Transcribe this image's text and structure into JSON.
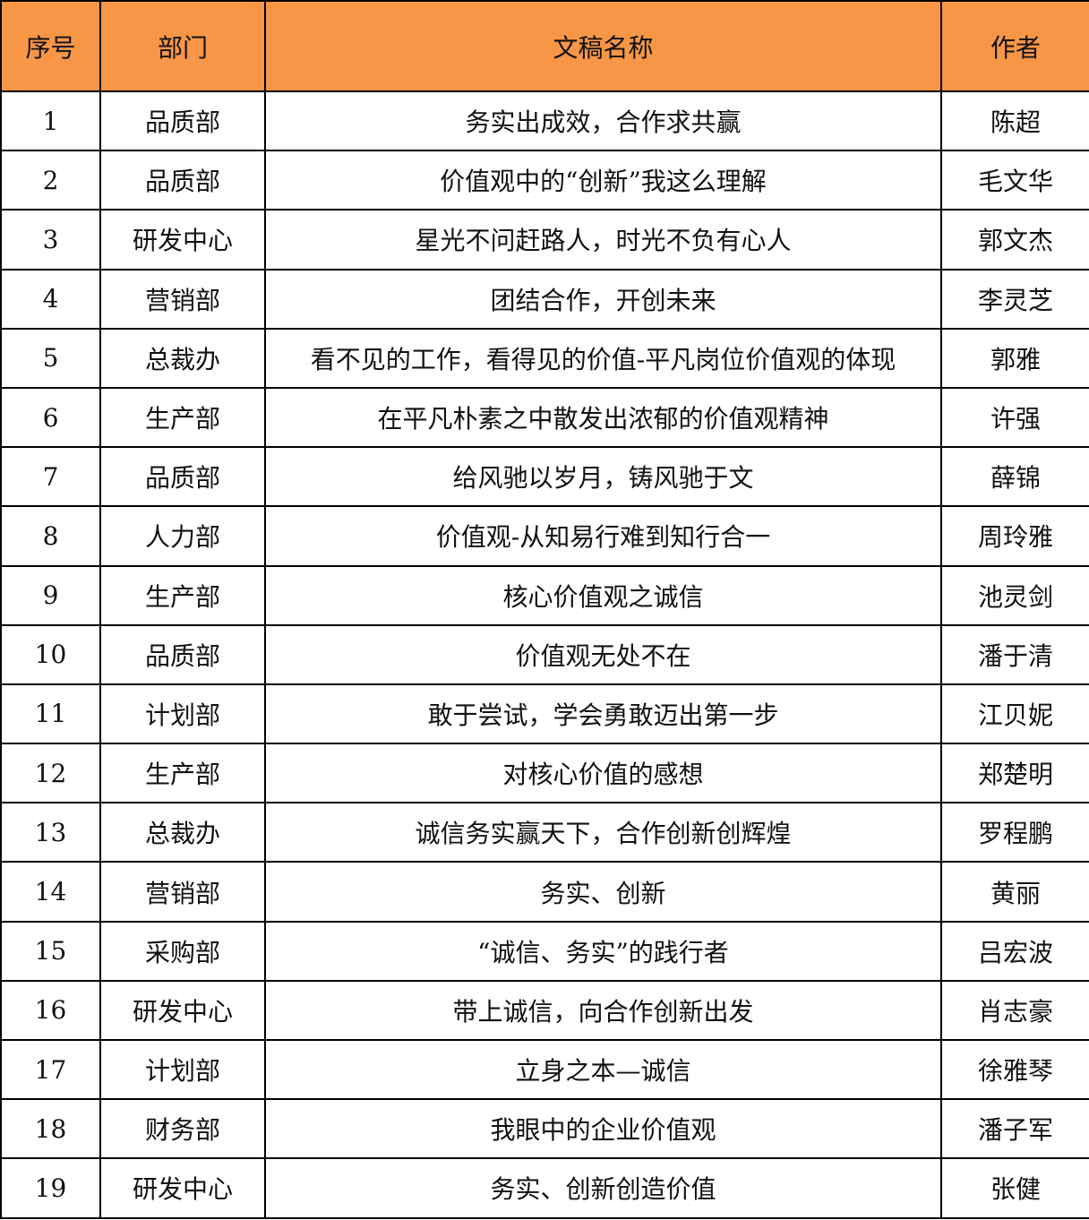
{
  "header_color": "#F79646",
  "headers": [
    "序号",
    "部门",
    "文稿名称",
    "作者"
  ],
  "rows": [
    [
      "1",
      "品质部",
      "务实出成效，合作求共赢",
      "陈超"
    ],
    [
      "2",
      "品质部",
      "价值观中的“创新”我这么理解",
      "毛文华"
    ],
    [
      "3",
      "研发中心",
      "星光不问赶路人，时光不负有心人",
      "郭文杰"
    ],
    [
      "4",
      "营销部",
      "团结合作，开创未来",
      "李灵芝"
    ],
    [
      "5",
      "总裁办",
      "看不见的工作，看得见的价值-平凡岗位价值观的体现",
      "郭雅"
    ],
    [
      "6",
      "生产部",
      "在平凡朴素之中散发出浓郁的价值观精神",
      "许强"
    ],
    [
      "7",
      "品质部",
      "给风驰以岁月，铸风驰于文",
      "薛锦"
    ],
    [
      "8",
      "人力部",
      "价值观-从知易行难到知行合一",
      "周玲雅"
    ],
    [
      "9",
      "生产部",
      "核心价值观之诚信",
      "池灵剑"
    ],
    [
      "10",
      "品质部",
      "价值观无处不在",
      "潘于清"
    ],
    [
      "11",
      "计划部",
      "敢于尝试，学会勇敢迈出第一步",
      "江贝妮"
    ],
    [
      "12",
      "生产部",
      "对核心价值的感想",
      "郑楚明"
    ],
    [
      "13",
      "总裁办",
      "诚信务实赢天下，合作创新创辉煌",
      "罗程鹏"
    ],
    [
      "14",
      "营销部",
      "务实、创新",
      "黄丽"
    ],
    [
      "15",
      "采购部",
      "“诚信、务实”的践行者",
      "吕宏波"
    ],
    [
      "16",
      "研发中心",
      "带上诚信，向合作创新出发",
      "肖志豪"
    ],
    [
      "17",
      "计划部",
      "立身之本—诚信",
      "徐雅琴"
    ],
    [
      "18",
      "财务部",
      "我眼中的企业价值观",
      "潘子军"
    ],
    [
      "19",
      "研发中心",
      "务实、创新创造价值",
      "张健"
    ]
  ]
}
